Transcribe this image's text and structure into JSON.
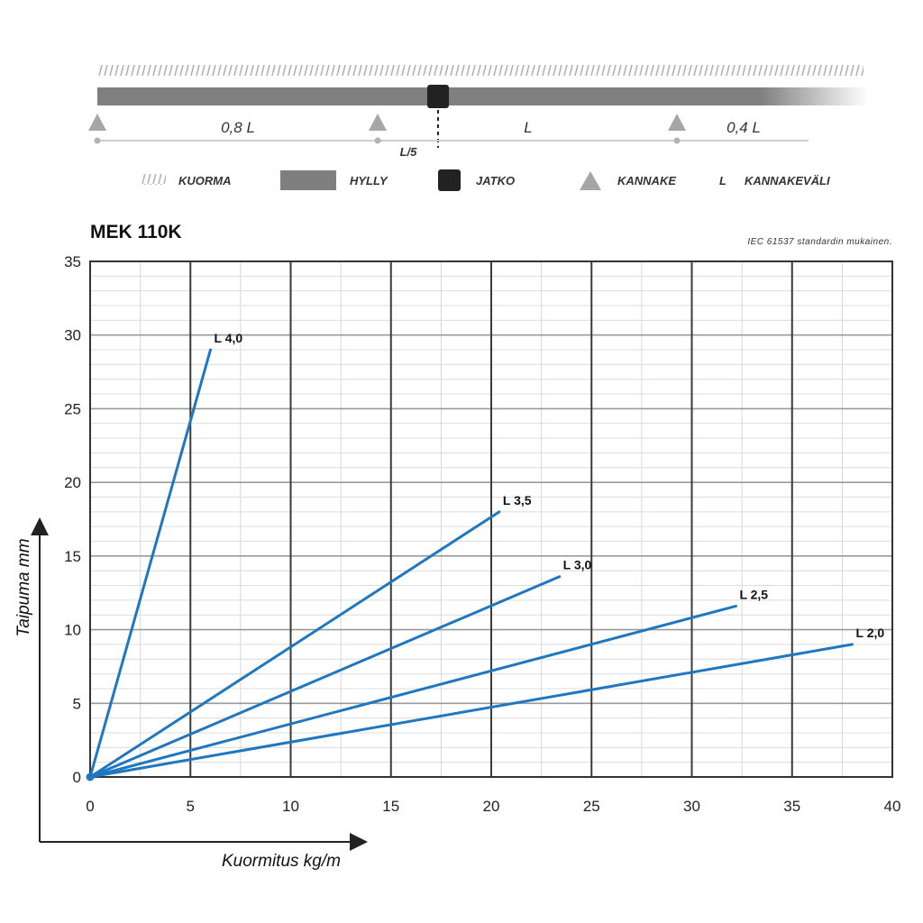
{
  "diagram": {
    "span_labels": [
      "0,8 L",
      "L",
      "0,4 L"
    ],
    "splice_label": "L/5"
  },
  "legend": [
    {
      "icon": "load-hatch-icon",
      "label": "KUORMA"
    },
    {
      "icon": "shelf-bar-icon",
      "label": "HYLLY"
    },
    {
      "icon": "joint-square-icon",
      "label": "JATKO"
    },
    {
      "icon": "bracket-triangle-icon",
      "label": "KANNAKE"
    },
    {
      "icon": "L",
      "label": "KANNAKEVÄLI"
    }
  ],
  "colors": {
    "line": "#1f77c0",
    "shelf": "#7f7f7f",
    "joint": "#222222",
    "bracket": "#a6a6a6"
  },
  "chart_data": {
    "type": "line",
    "title": "MEK 110K",
    "subtitle": "IEC 61537 standardin mukainen.",
    "xlabel": "Kuormitus kg/m",
    "ylabel": "Taipuma mm",
    "xlim": [
      0,
      40
    ],
    "ylim": [
      0,
      35
    ],
    "xticks": [
      0,
      5,
      10,
      15,
      20,
      25,
      30,
      35,
      40
    ],
    "yticks": [
      0,
      5,
      10,
      15,
      20,
      25,
      30,
      35
    ],
    "grid": true,
    "series": [
      {
        "name": "L 4,0",
        "x": [
          0,
          6.0
        ],
        "y": [
          0,
          29.0
        ]
      },
      {
        "name": "L 3,5",
        "x": [
          0,
          20.4
        ],
        "y": [
          0,
          18.0
        ]
      },
      {
        "name": "L 3,0",
        "x": [
          0,
          23.4
        ],
        "y": [
          0,
          13.6
        ]
      },
      {
        "name": "L 2,5",
        "x": [
          0,
          32.2
        ],
        "y": [
          0,
          11.6
        ]
      },
      {
        "name": "L 2,0",
        "x": [
          0,
          38.0
        ],
        "y": [
          0,
          9.0
        ]
      }
    ]
  }
}
